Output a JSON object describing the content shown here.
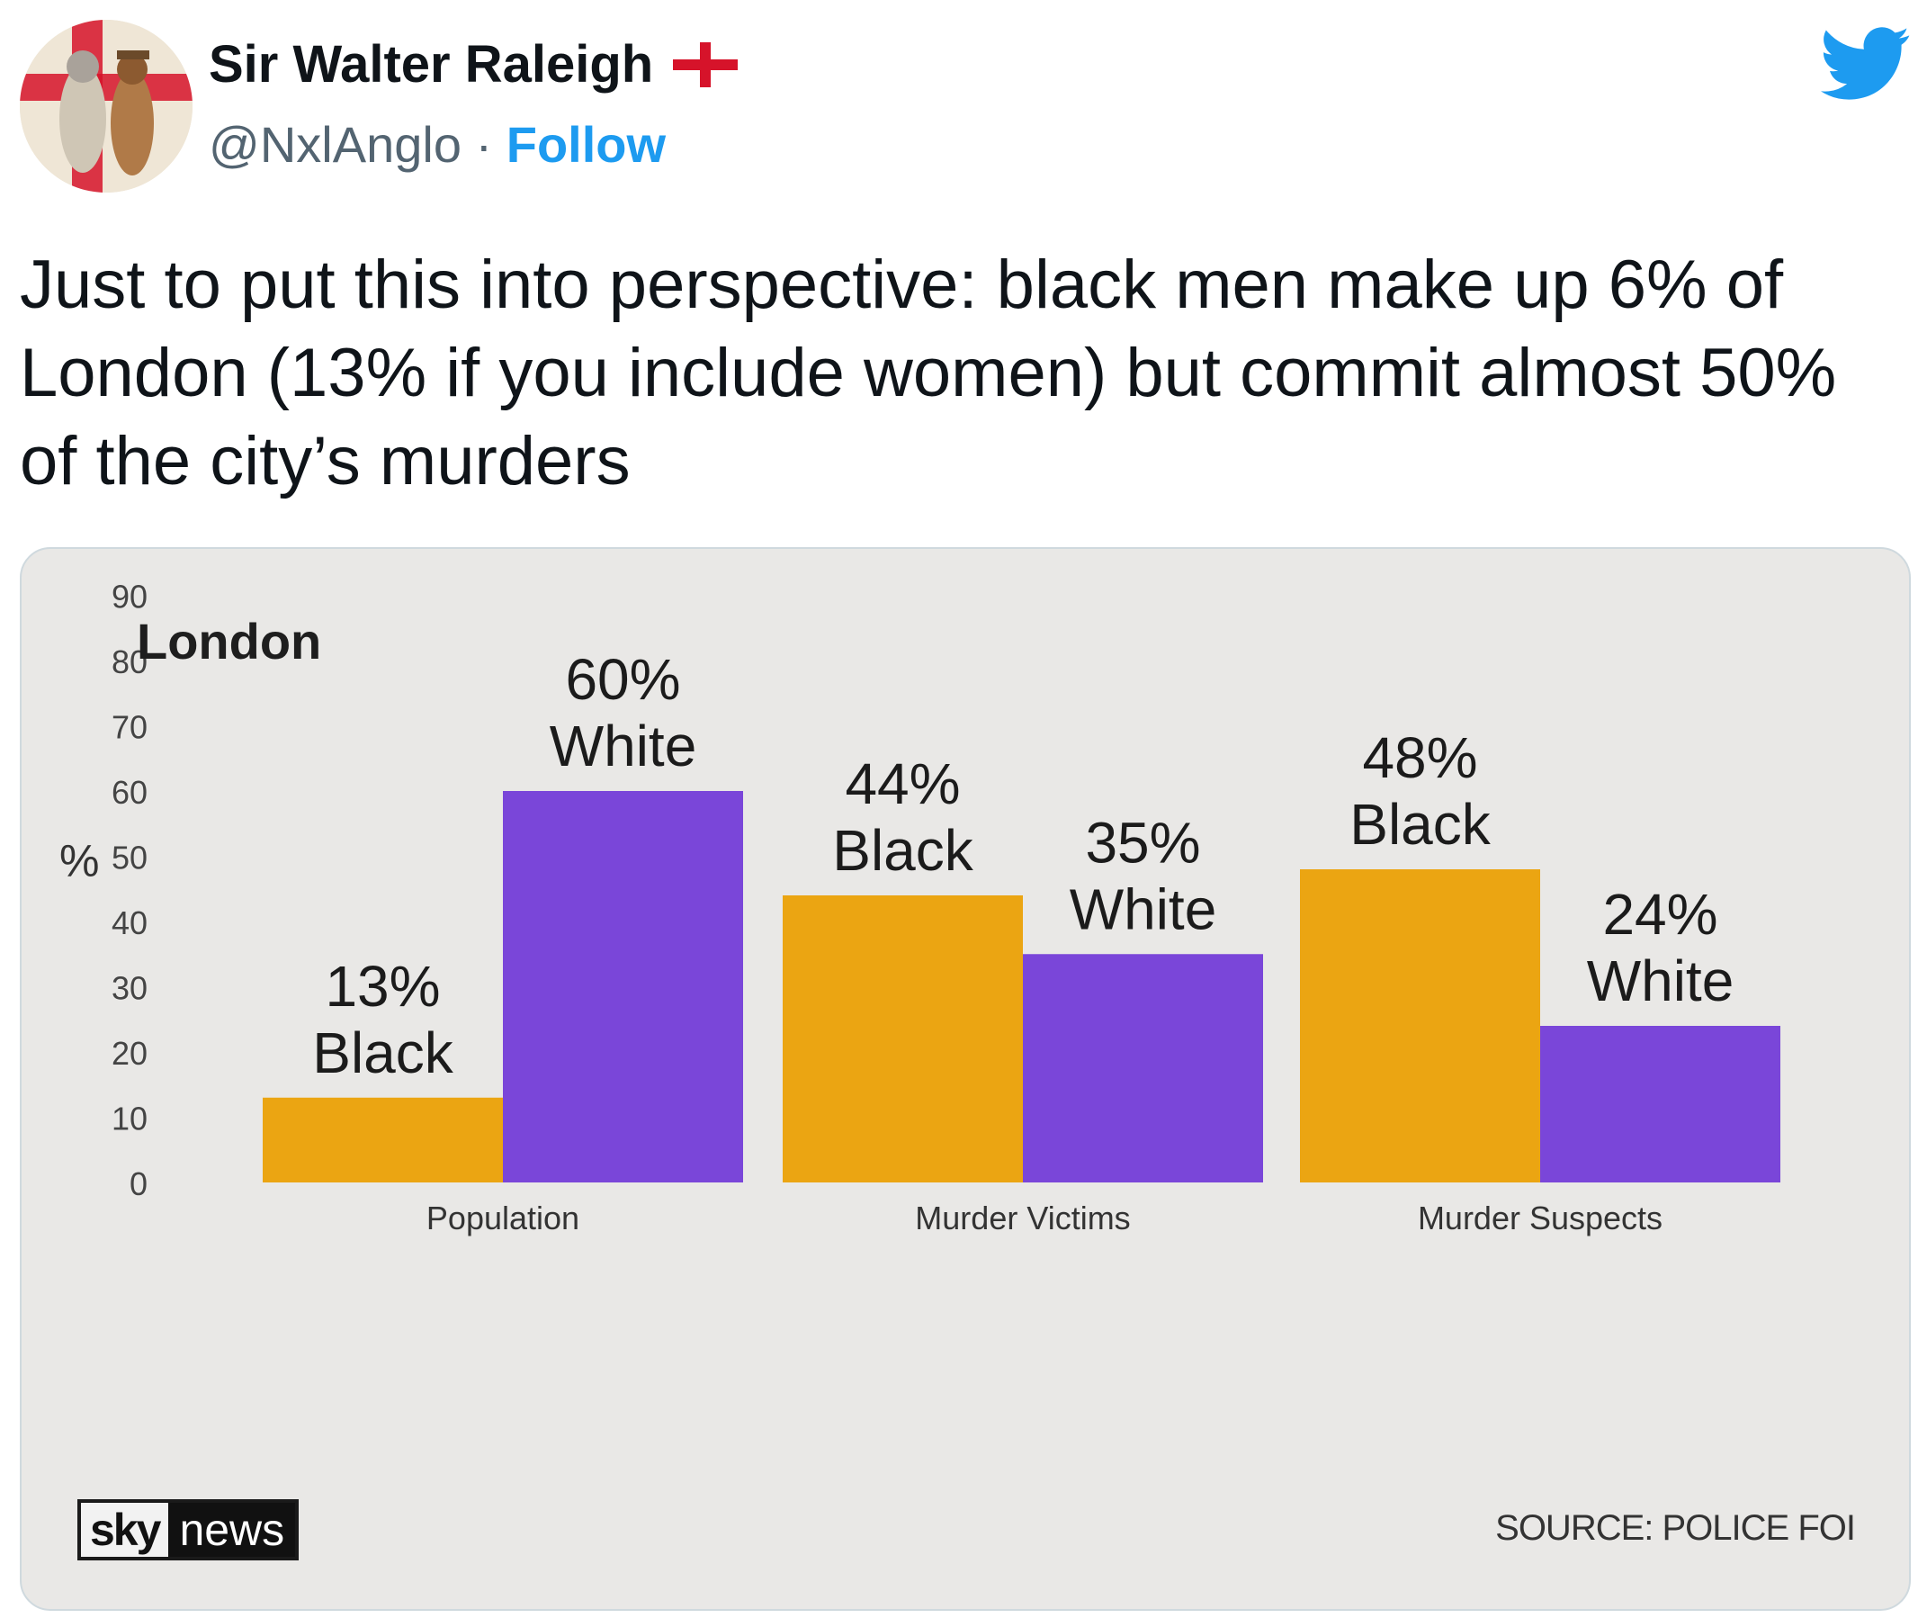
{
  "tweet": {
    "author": {
      "display_name": "Sir Walter Raleigh",
      "handle": "@NxlAnglo",
      "separator": "·",
      "follow_label": "Follow"
    },
    "text": "Just to put this into perspective: black men make up 6% of London (13% if you include women) but commit almost 50% of the city’s murders",
    "icons": {
      "flag": "england-flag-icon",
      "brand": "twitter-bird-icon"
    },
    "colors": {
      "follow": "#1d9bf0",
      "brand": "#1d9bf0"
    }
  },
  "media": {
    "title": "London",
    "source": "SOURCE: POLICE FOI",
    "logo_sky": "sky",
    "logo_news": "news"
  },
  "chart_data": {
    "type": "bar",
    "title": "London",
    "ylabel": "%",
    "ylim": [
      0,
      100
    ],
    "yticks": [
      "0",
      "10",
      "20",
      "30",
      "40",
      "50",
      "60",
      "70",
      "80",
      "90",
      "100"
    ],
    "categories": [
      "Population",
      "Murder Victims",
      "Murder Suspects"
    ],
    "series": [
      {
        "name": "Black",
        "color": "#eba512",
        "values": [
          13,
          44,
          48
        ]
      },
      {
        "name": "White",
        "color": "#7a46d9",
        "values": [
          60,
          35,
          24
        ]
      }
    ],
    "data_labels": [
      [
        "13%",
        "Black"
      ],
      [
        "60%",
        "White"
      ],
      [
        "44%",
        "Black"
      ],
      [
        "35%",
        "White"
      ],
      [
        "48%",
        "Black"
      ],
      [
        "24%",
        "White"
      ]
    ],
    "grid": false
  }
}
